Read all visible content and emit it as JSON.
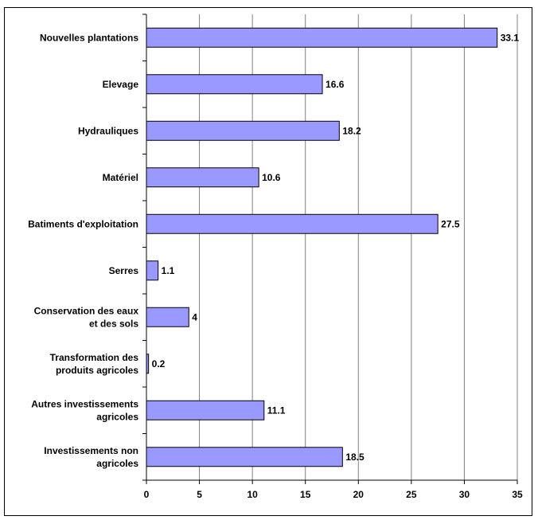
{
  "chart_data": {
    "type": "bar",
    "orientation": "horizontal",
    "categories": [
      [
        "Nouvelles plantations"
      ],
      [
        "Elevage"
      ],
      [
        "Hydrauliques"
      ],
      [
        "Matériel"
      ],
      [
        "Batiments d'exploitation"
      ],
      [
        "Serres"
      ],
      [
        "Conservation des eaux",
        "et des sols"
      ],
      [
        "Transformation des",
        "produits agricoles"
      ],
      [
        "Autres investissements",
        "agricoles"
      ],
      [
        "Investissements non",
        "agricoles"
      ]
    ],
    "values": [
      33.1,
      16.6,
      18.2,
      10.6,
      27.5,
      1.1,
      4,
      0.2,
      11.1,
      18.5
    ],
    "value_labels": [
      "33.1",
      "16.6",
      "18.2",
      "10.6",
      "27.5",
      "1.1",
      "4",
      "0.2",
      "11.1",
      "18.5"
    ],
    "xlim": [
      0,
      35
    ],
    "xticks": [
      0,
      5,
      10,
      15,
      20,
      25,
      30,
      35
    ],
    "grid": "vertical",
    "legend": "none",
    "colors": {
      "bar": "#9999ff",
      "bar_border": "#000000",
      "grid": "#808080"
    }
  }
}
